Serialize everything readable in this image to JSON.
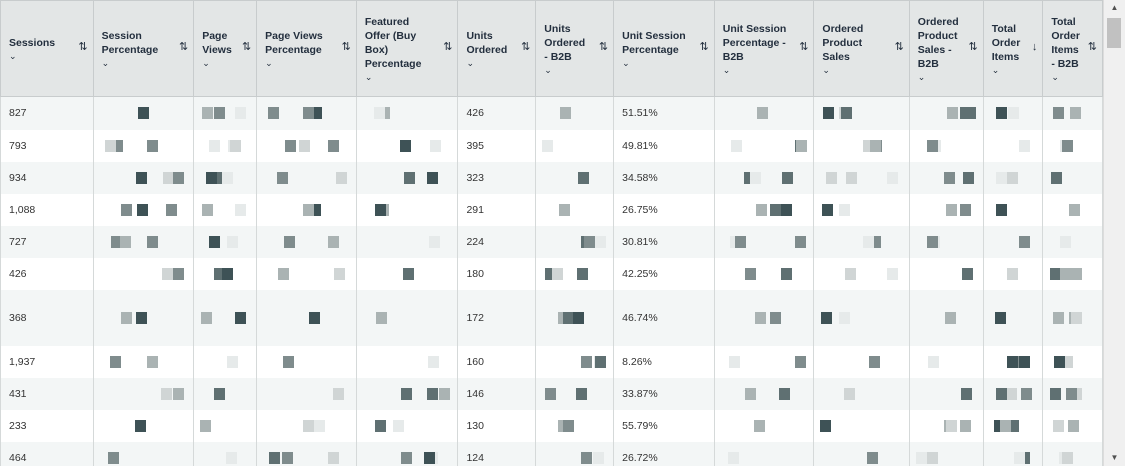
{
  "columns": [
    {
      "key": "sessions",
      "label": "Sessions"
    },
    {
      "key": "session_pct",
      "label": "Session Percentage"
    },
    {
      "key": "page_views",
      "label": "Page Views"
    },
    {
      "key": "page_views_pct",
      "label": "Page Views Percentage"
    },
    {
      "key": "buy_box_pct",
      "label": "Featured Offer (Buy Box) Percentage"
    },
    {
      "key": "units_ordered",
      "label": "Units Ordered"
    },
    {
      "key": "units_ordered_b2b",
      "label": "Units Ordered - B2B"
    },
    {
      "key": "unit_session_pct",
      "label": "Unit Session Percentage"
    },
    {
      "key": "unit_session_pct_b2b",
      "label": "Unit Session Percentage - B2B"
    },
    {
      "key": "ordered_sales",
      "label": "Ordered Product Sales"
    },
    {
      "key": "ordered_sales_b2b",
      "label": "Ordered Product Sales - B2B"
    },
    {
      "key": "total_order_items",
      "label": "Total Order Items"
    },
    {
      "key": "total_order_items_b2b",
      "label": "Total Order Items - B2B"
    }
  ],
  "sort_icon": "sort-arrows-icon",
  "active_sort_icon": "sort-descending-icon",
  "caret_icon": "chevron-down-icon",
  "redaction_colors": [
    "#e6eaea",
    "#d0d5d5",
    "#aab3b3",
    "#7f8c8d",
    "#5f7072",
    "#3e5256"
  ],
  "rows": [
    {
      "sessions": "827",
      "units_ordered": "426",
      "unit_session_pct": "51.51%"
    },
    {
      "sessions": "793",
      "units_ordered": "395",
      "unit_session_pct": "49.81%"
    },
    {
      "sessions": "934",
      "units_ordered": "323",
      "unit_session_pct": "34.58%"
    },
    {
      "sessions": "1,088",
      "units_ordered": "291",
      "unit_session_pct": "26.75%"
    },
    {
      "sessions": "727",
      "units_ordered": "224",
      "unit_session_pct": "30.81%"
    },
    {
      "sessions": "426",
      "units_ordered": "180",
      "unit_session_pct": "42.25%"
    },
    {
      "sessions": "368",
      "units_ordered": "172",
      "unit_session_pct": "46.74%"
    },
    {
      "sessions": "1,937",
      "units_ordered": "160",
      "unit_session_pct": "8.26%"
    },
    {
      "sessions": "431",
      "units_ordered": "146",
      "unit_session_pct": "33.87%"
    },
    {
      "sessions": "233",
      "units_ordered": "130",
      "unit_session_pct": "55.79%"
    },
    {
      "sessions": "464",
      "units_ordered": "124",
      "unit_session_pct": "26.72%"
    }
  ],
  "scrollbar": {
    "up_arrow": "▲",
    "down_arrow": "▼"
  }
}
